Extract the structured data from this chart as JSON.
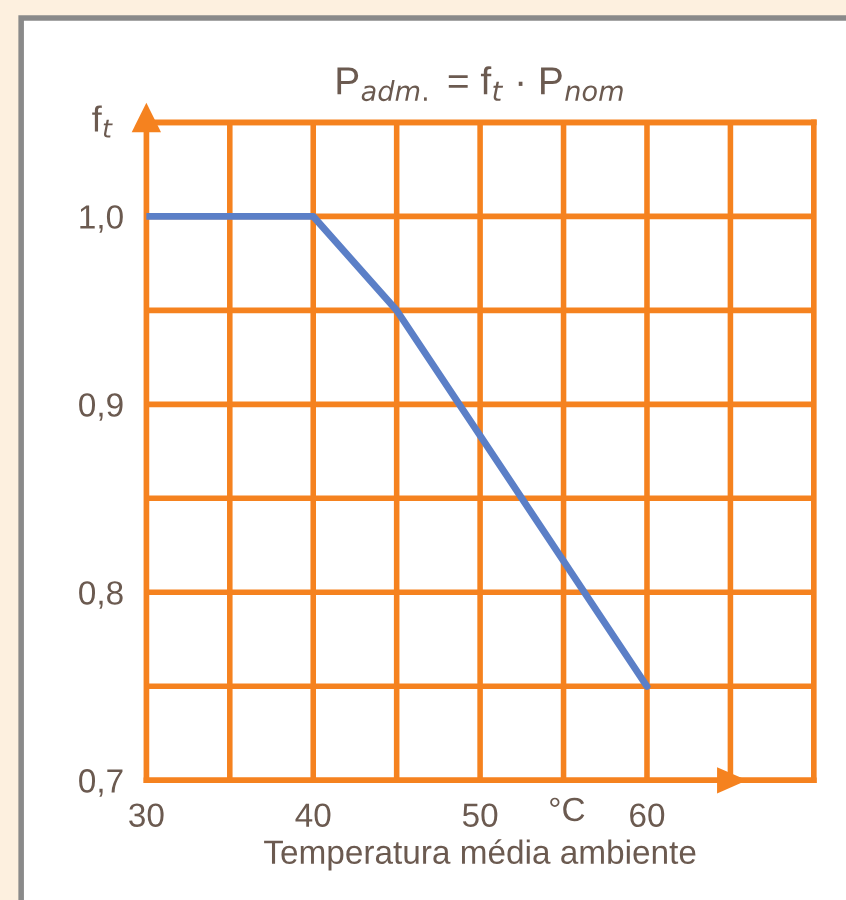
{
  "chart_data": {
    "type": "line",
    "title": "P$_{adm.}$ = f$_{t}$ · P$_{nom}$",
    "ylabel": "f$_{t}$",
    "xlabel": "Temperatura média ambiente",
    "annotations": [
      "°C"
    ],
    "x": [
      30,
      40,
      45,
      60
    ],
    "series": [
      {
        "color": "#5b7fc7",
        "values": [
          1.0,
          1.0,
          0.95,
          0.75
        ]
      }
    ],
    "xlim": [
      30,
      70
    ],
    "ylim": [
      0.7,
      1.05
    ],
    "xticks": [
      30,
      {
        "value": 35,
        "label": null
      },
      40,
      {
        "value": 45,
        "label": null
      },
      50,
      {
        "value": 55,
        "label": null
      },
      60,
      {
        "value": 65,
        "label": null
      },
      {
        "value": 70,
        "label": null
      }
    ],
    "yticks": [
      {
        "value": 0.7,
        "label": "0,7"
      },
      {
        "value": 0.75,
        "label": null
      },
      {
        "value": 0.8,
        "label": "0,8"
      },
      {
        "value": 0.85,
        "label": null
      },
      {
        "value": 0.9,
        "label": "0,9"
      },
      {
        "value": 0.95,
        "label": null
      },
      {
        "value": 1.0,
        "label": "1,0"
      },
      {
        "value": 1.05,
        "label": null
      }
    ],
    "grid": true,
    "marker": "none",
    "line_style": "solid"
  }
}
